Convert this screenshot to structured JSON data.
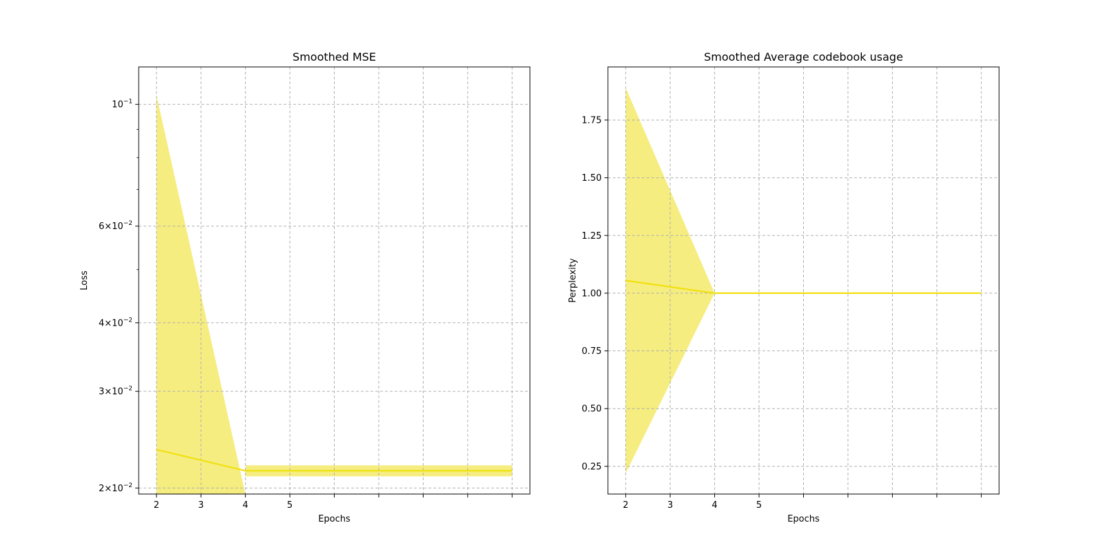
{
  "chart_data": [
    {
      "type": "line",
      "title": "Smoothed MSE",
      "xlabel": "Epochs",
      "ylabel": "Loss",
      "yscale": "log",
      "grid": true,
      "xlim": [
        1.6,
        10.4
      ],
      "ylim": [
        0.0195,
        0.117
      ],
      "xticks": [
        2,
        3,
        4,
        5,
        6,
        7,
        8,
        9,
        10
      ],
      "xtick_labels": [
        "2",
        "3",
        "4",
        "5",
        "",
        "",
        "",
        "",
        ""
      ],
      "yticks": [
        {
          "value": 0.1,
          "base": "10",
          "exp": "−1"
        },
        {
          "value": 0.06,
          "base": "6×10",
          "exp": "−2"
        },
        {
          "value": 0.04,
          "base": "4×10",
          "exp": "−2"
        },
        {
          "value": 0.03,
          "base": "3×10",
          "exp": "−2"
        },
        {
          "value": 0.02,
          "base": "2×10",
          "exp": "−2"
        }
      ],
      "yminor_ticks": [
        0.05,
        0.07,
        0.08,
        0.09
      ],
      "series": [
        {
          "color": "#f0e010",
          "fill_color": "#f5ea6a",
          "x": [
            2,
            4,
            10
          ],
          "values": [
            0.0235,
            0.0215,
            0.0215
          ],
          "band_lower": [
            0.0195,
            0.0195,
            0.021
          ],
          "band_upper": [
            0.104,
            0.0195,
            0.022
          ],
          "band": [
            {
              "x": 2,
              "lower": 0.0195,
              "upper": 0.104
            },
            {
              "x": 4,
              "lower": 0.0195,
              "upper": 0.0195
            },
            {
              "x": 4,
              "lower": 0.021,
              "upper": 0.022
            },
            {
              "x": 10,
              "lower": 0.021,
              "upper": 0.022
            }
          ]
        }
      ]
    },
    {
      "type": "line",
      "title": "Smoothed Average codebook usage",
      "xlabel": "Epochs",
      "ylabel": "Perplexity",
      "yscale": "linear",
      "grid": true,
      "xlim": [
        1.6,
        10.4
      ],
      "ylim": [
        0.13,
        1.98
      ],
      "xticks": [
        2,
        3,
        4,
        5,
        6,
        7,
        8,
        9,
        10
      ],
      "xtick_labels": [
        "2",
        "3",
        "4",
        "5",
        "",
        "",
        "",
        "",
        ""
      ],
      "yticks": [
        {
          "value": 0.25,
          "label": "0.25"
        },
        {
          "value": 0.5,
          "label": "0.50"
        },
        {
          "value": 0.75,
          "label": "0.75"
        },
        {
          "value": 1.0,
          "label": "1.00"
        },
        {
          "value": 1.25,
          "label": "1.25"
        },
        {
          "value": 1.5,
          "label": "1.50"
        },
        {
          "value": 1.75,
          "label": "1.75"
        }
      ],
      "series": [
        {
          "color": "#f0e010",
          "fill_color": "#f5ea6a",
          "x": [
            2,
            4,
            10
          ],
          "values": [
            1.055,
            1.0,
            1.0
          ],
          "band": [
            {
              "x": 2,
              "lower": 0.22,
              "upper": 1.89
            },
            {
              "x": 4,
              "lower": 1.0,
              "upper": 1.0
            },
            {
              "x": 10,
              "lower": 1.0,
              "upper": 1.0
            }
          ]
        }
      ]
    }
  ]
}
